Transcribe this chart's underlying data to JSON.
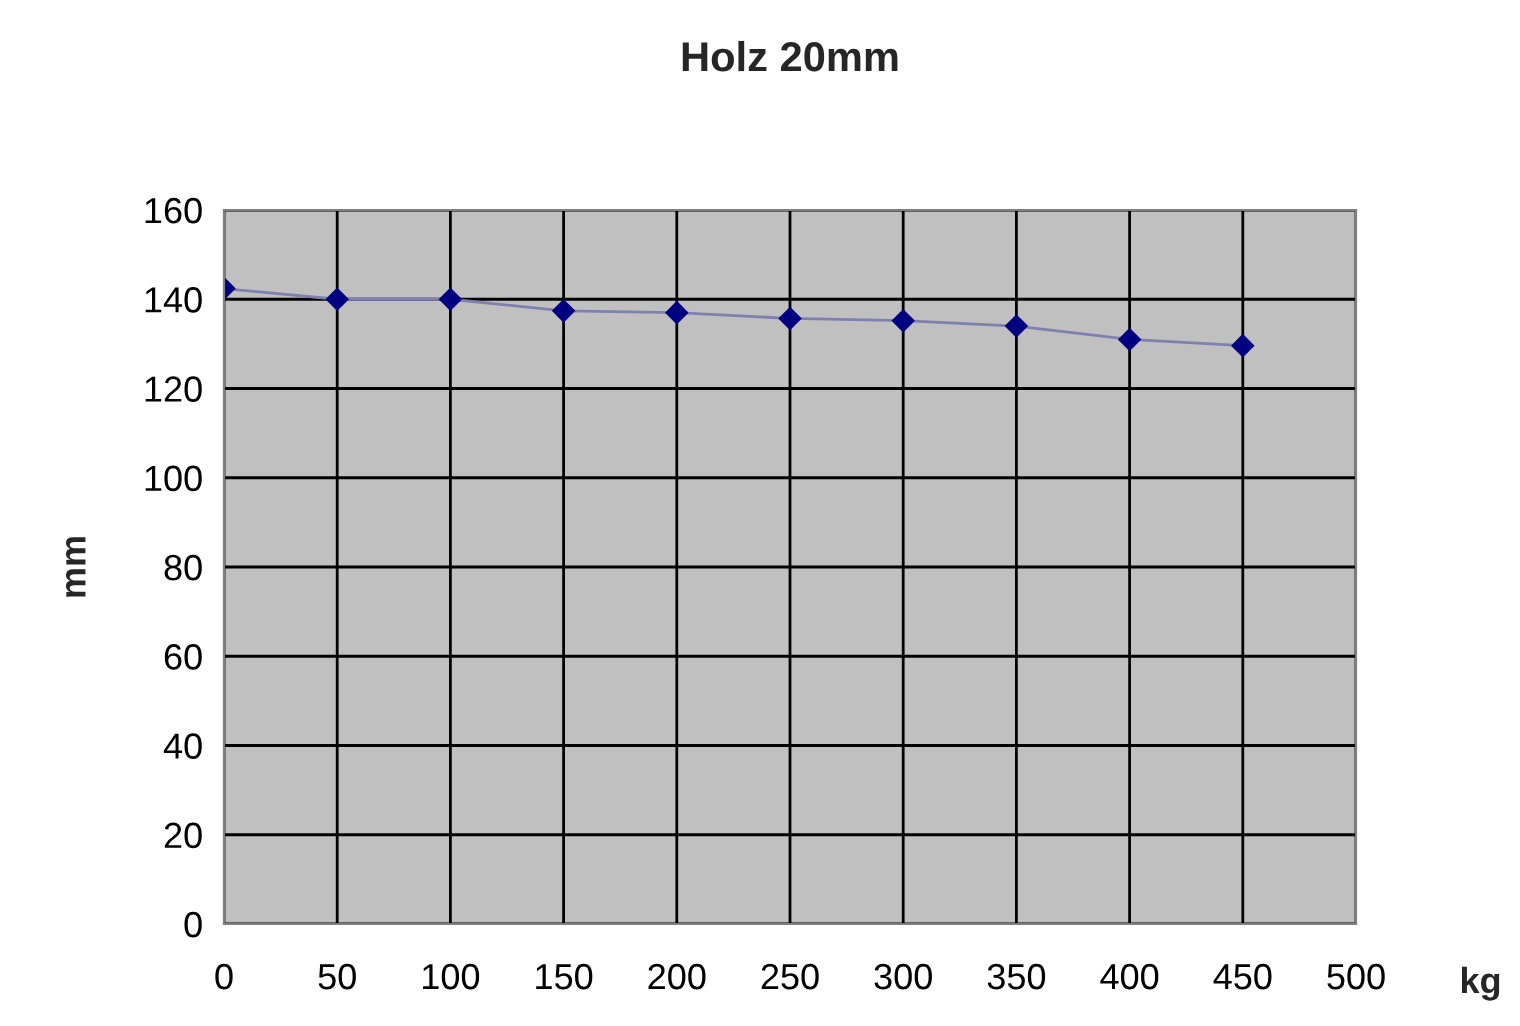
{
  "chart_data": {
    "type": "line",
    "title": "Holz 20mm",
    "xlabel": "kg",
    "ylabel": "mm",
    "x": [
      0,
      50,
      100,
      150,
      200,
      250,
      300,
      350,
      400,
      450
    ],
    "series": [
      {
        "color": "#000080",
        "values": [
          142.4,
          140,
          140,
          137.4,
          137,
          135.7,
          135.2,
          134,
          131,
          129.6
        ]
      }
    ],
    "xlim": [
      0,
      500
    ],
    "xticks": [
      0,
      50,
      100,
      150,
      200,
      250,
      300,
      350,
      400,
      450,
      500
    ],
    "ylim": [
      0,
      160
    ],
    "yticks": [
      0,
      20,
      40,
      60,
      80,
      100,
      120,
      140,
      160
    ],
    "grid": true,
    "marker": "diamond",
    "line_style": "solid"
  }
}
